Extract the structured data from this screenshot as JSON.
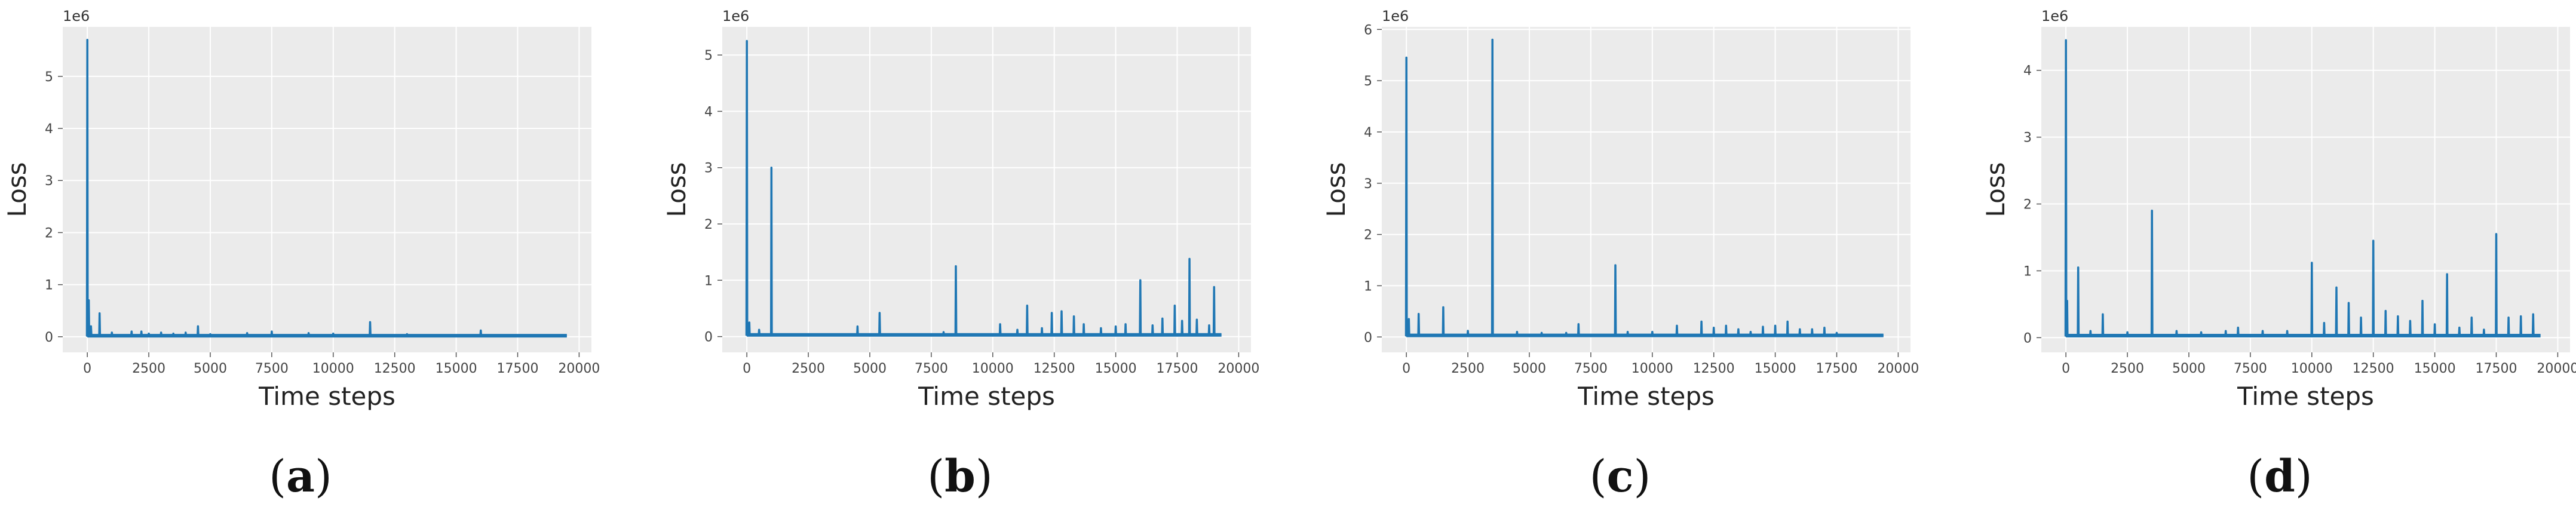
{
  "chart_data": [
    {
      "type": "line",
      "panel_label": "a",
      "xlabel": "Time steps",
      "ylabel": "Loss",
      "y_exponent_label": "1e6",
      "xlim": [
        -1000,
        20500
      ],
      "ylim": [
        -0.3,
        5.95
      ],
      "x_ticks": [
        0,
        2500,
        5000,
        7500,
        10000,
        12500,
        15000,
        17500,
        20000
      ],
      "y_ticks": [
        0,
        1,
        2,
        3,
        4,
        5
      ],
      "grid": true,
      "line_color": "#1f77b4",
      "series": [
        {
          "baseline": 0.02,
          "x_end": 19500,
          "spikes": [
            [
              0,
              5.7
            ],
            [
              60,
              0.7
            ],
            [
              150,
              0.2
            ],
            [
              500,
              0.45
            ],
            [
              1000,
              0.08
            ],
            [
              1800,
              0.1
            ],
            [
              2200,
              0.1
            ],
            [
              2500,
              0.06
            ],
            [
              3000,
              0.08
            ],
            [
              3500,
              0.06
            ],
            [
              4000,
              0.08
            ],
            [
              4500,
              0.2
            ],
            [
              5000,
              0.05
            ],
            [
              6500,
              0.07
            ],
            [
              7500,
              0.1
            ],
            [
              9000,
              0.07
            ],
            [
              10000,
              0.06
            ],
            [
              11500,
              0.28
            ],
            [
              13000,
              0.05
            ],
            [
              16000,
              0.12
            ]
          ]
        }
      ]
    },
    {
      "type": "line",
      "panel_label": "b",
      "xlabel": "Time steps",
      "ylabel": "Loss",
      "y_exponent_label": "1e6",
      "xlim": [
        -1000,
        20500
      ],
      "ylim": [
        -0.28,
        5.5
      ],
      "x_ticks": [
        0,
        2500,
        5000,
        7500,
        10000,
        12500,
        15000,
        17500,
        20000
      ],
      "y_ticks": [
        0,
        1,
        2,
        3,
        4,
        5
      ],
      "grid": true,
      "line_color": "#1f77b4",
      "series": [
        {
          "baseline": 0.03,
          "x_end": 19300,
          "spikes": [
            [
              0,
              5.25
            ],
            [
              100,
              0.25
            ],
            [
              500,
              0.12
            ],
            [
              1000,
              3.0
            ],
            [
              4500,
              0.18
            ],
            [
              5400,
              0.42
            ],
            [
              8000,
              0.08
            ],
            [
              8500,
              1.25
            ],
            [
              10300,
              0.22
            ],
            [
              11000,
              0.12
            ],
            [
              11400,
              0.55
            ],
            [
              12000,
              0.15
            ],
            [
              12400,
              0.42
            ],
            [
              12800,
              0.45
            ],
            [
              13300,
              0.36
            ],
            [
              13700,
              0.22
            ],
            [
              14400,
              0.15
            ],
            [
              15000,
              0.18
            ],
            [
              15400,
              0.22
            ],
            [
              16000,
              1.0
            ],
            [
              16500,
              0.2
            ],
            [
              16900,
              0.32
            ],
            [
              17400,
              0.55
            ],
            [
              17700,
              0.28
            ],
            [
              18000,
              1.38
            ],
            [
              18300,
              0.3
            ],
            [
              18800,
              0.2
            ],
            [
              19000,
              0.88
            ]
          ]
        }
      ]
    },
    {
      "type": "line",
      "panel_label": "c",
      "xlabel": "Time steps",
      "ylabel": "Loss",
      "y_exponent_label": "1e6",
      "xlim": [
        -1000,
        20500
      ],
      "ylim": [
        -0.3,
        6.05
      ],
      "x_ticks": [
        0,
        2500,
        5000,
        7500,
        10000,
        12500,
        15000,
        17500,
        20000
      ],
      "y_ticks": [
        0,
        1,
        2,
        3,
        4,
        5,
        6
      ],
      "grid": true,
      "line_color": "#1f77b4",
      "series": [
        {
          "baseline": 0.03,
          "x_end": 19400,
          "spikes": [
            [
              0,
              5.45
            ],
            [
              100,
              0.35
            ],
            [
              500,
              0.45
            ],
            [
              1500,
              0.58
            ],
            [
              2500,
              0.12
            ],
            [
              3500,
              5.8
            ],
            [
              4500,
              0.1
            ],
            [
              5500,
              0.08
            ],
            [
              6500,
              0.08
            ],
            [
              7000,
              0.25
            ],
            [
              8500,
              1.4
            ],
            [
              9000,
              0.1
            ],
            [
              10000,
              0.1
            ],
            [
              11000,
              0.22
            ],
            [
              12000,
              0.3
            ],
            [
              12500,
              0.18
            ],
            [
              13000,
              0.22
            ],
            [
              13500,
              0.15
            ],
            [
              14000,
              0.1
            ],
            [
              14500,
              0.2
            ],
            [
              15000,
              0.22
            ],
            [
              15500,
              0.3
            ],
            [
              16000,
              0.15
            ],
            [
              16500,
              0.15
            ],
            [
              17000,
              0.18
            ],
            [
              17500,
              0.08
            ]
          ]
        }
      ]
    },
    {
      "type": "line",
      "panel_label": "d",
      "xlabel": "Time steps",
      "ylabel": "Loss",
      "y_exponent_label": "1e6",
      "xlim": [
        -1000,
        20500
      ],
      "ylim": [
        -0.22,
        4.65
      ],
      "x_ticks": [
        0,
        2500,
        5000,
        7500,
        10000,
        12500,
        15000,
        17500,
        20000
      ],
      "y_ticks": [
        0,
        1,
        2,
        3,
        4
      ],
      "grid": true,
      "line_color": "#1f77b4",
      "series": [
        {
          "baseline": 0.03,
          "x_end": 19300,
          "spikes": [
            [
              0,
              4.45
            ],
            [
              50,
              0.55
            ],
            [
              500,
              1.05
            ],
            [
              1000,
              0.1
            ],
            [
              1500,
              0.35
            ],
            [
              2500,
              0.08
            ],
            [
              3500,
              1.9
            ],
            [
              4500,
              0.1
            ],
            [
              5500,
              0.08
            ],
            [
              6500,
              0.1
            ],
            [
              7000,
              0.15
            ],
            [
              8000,
              0.1
            ],
            [
              9000,
              0.1
            ],
            [
              10000,
              1.12
            ],
            [
              10500,
              0.22
            ],
            [
              11000,
              0.75
            ],
            [
              11500,
              0.52
            ],
            [
              12000,
              0.3
            ],
            [
              12500,
              1.45
            ],
            [
              13000,
              0.4
            ],
            [
              13500,
              0.32
            ],
            [
              14000,
              0.25
            ],
            [
              14500,
              0.55
            ],
            [
              15000,
              0.2
            ],
            [
              15500,
              0.95
            ],
            [
              16000,
              0.15
            ],
            [
              16500,
              0.3
            ],
            [
              17000,
              0.12
            ],
            [
              17500,
              1.55
            ],
            [
              18000,
              0.3
            ],
            [
              18500,
              0.32
            ],
            [
              19000,
              0.35
            ]
          ]
        }
      ]
    }
  ]
}
